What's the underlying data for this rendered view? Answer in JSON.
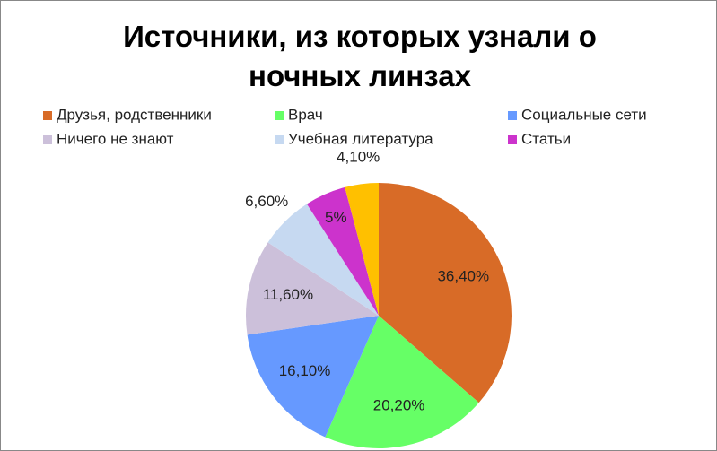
{
  "chart_data": {
    "type": "pie",
    "title": "Источники, из которых узнали о ночных линзах",
    "categories": [
      "Друзья, родственники",
      "Врач",
      "Социальные сети",
      "Ничего не знают",
      "Учебная литература",
      "Статьи",
      null
    ],
    "values": [
      36.4,
      20.2,
      16.1,
      11.6,
      6.6,
      5,
      4.1
    ],
    "value_labels": [
      "36,40%",
      "20,20%",
      "16,10%",
      "11,60%",
      "6,60%",
      "5%",
      "4,10%"
    ],
    "colors": [
      "#d86b27",
      "#66ff66",
      "#6699ff",
      "#ccc0da",
      "#c6d9f1",
      "#cc33cc",
      "#ffc000"
    ],
    "legend": "top"
  }
}
